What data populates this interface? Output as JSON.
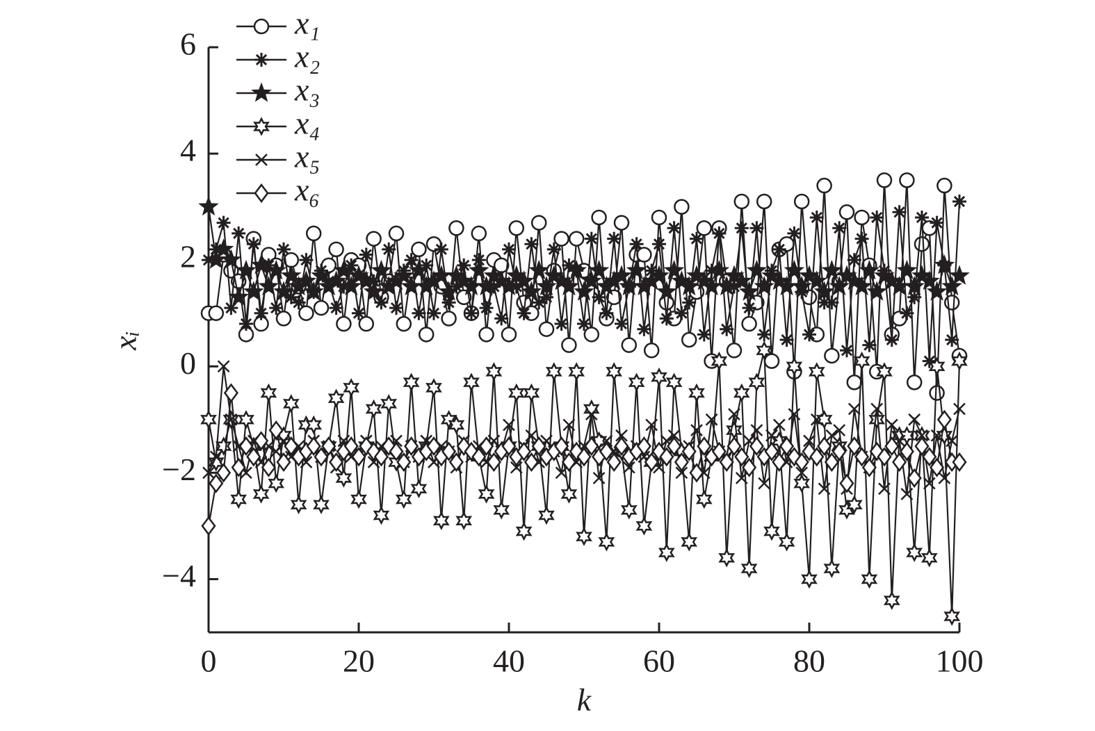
{
  "chart_data": {
    "type": "line",
    "xlabel": "k",
    "ylabel": "xᵢ",
    "xlim": [
      0,
      100
    ],
    "xticks": [
      0,
      20,
      40,
      60,
      80,
      100
    ],
    "ylim": [
      -5,
      6
    ],
    "yticks": [
      {
        "value": -4,
        "label": "−4"
      },
      {
        "value": -2,
        "label": "−2"
      },
      0,
      2,
      4,
      6
    ],
    "legend": "top-left",
    "x": [
      0,
      1,
      2,
      3,
      4,
      5,
      6,
      7,
      8,
      9,
      10,
      11,
      12,
      13,
      14,
      15,
      16,
      17,
      18,
      19,
      20,
      21,
      22,
      23,
      24,
      25,
      26,
      27,
      28,
      29,
      30,
      31,
      32,
      33,
      34,
      35,
      36,
      37,
      38,
      39,
      40,
      41,
      42,
      43,
      44,
      45,
      46,
      47,
      48,
      49,
      50,
      51,
      52,
      53,
      54,
      55,
      56,
      57,
      58,
      59,
      60,
      61,
      62,
      63,
      64,
      65,
      66,
      67,
      68,
      69,
      70,
      71,
      72,
      73,
      74,
      75,
      76,
      77,
      78,
      79,
      80,
      81,
      82,
      83,
      84,
      85,
      86,
      87,
      88,
      89,
      90,
      91,
      92,
      93,
      94,
      95,
      96,
      97,
      98,
      99,
      100
    ],
    "series": [
      {
        "name": "x₁",
        "color": "#231f20",
        "marker": "circle",
        "values": [
          1.0,
          1.0,
          2.1,
          1.8,
          1.6,
          0.6,
          2.4,
          0.8,
          2.1,
          1.9,
          0.9,
          2.0,
          1.5,
          1.0,
          2.5,
          1.1,
          1.9,
          2.2,
          0.8,
          2.0,
          1.9,
          0.8,
          2.4,
          1.3,
          1.6,
          2.5,
          0.8,
          1.8,
          2.2,
          0.6,
          2.3,
          1.5,
          0.9,
          2.6,
          1.3,
          1.0,
          2.5,
          0.6,
          2.0,
          1.9,
          0.6,
          2.6,
          1.2,
          1.0,
          2.7,
          0.7,
          1.8,
          2.4,
          0.4,
          2.4,
          1.8,
          0.6,
          2.8,
          0.9,
          1.3,
          2.7,
          0.4,
          2.1,
          2.1,
          0.3,
          2.8,
          1.2,
          0.9,
          3.0,
          0.5,
          1.4,
          2.6,
          0.1,
          2.6,
          1.6,
          0.3,
          3.1,
          0.8,
          1.2,
          3.1,
          0.1,
          2.2,
          2.3,
          -0.1,
          3.1,
          1.3,
          0.6,
          3.4,
          0.2,
          1.6,
          2.9,
          -0.3,
          2.8,
          1.9,
          -0.1,
          3.5,
          0.6,
          0.9,
          3.5,
          -0.3,
          2.3,
          2.6,
          -0.5,
          3.4,
          1.2,
          0.2
        ]
      },
      {
        "name": "x₂",
        "color": "#231f20",
        "marker": "asterisk",
        "values": [
          2.0,
          2.2,
          2.7,
          1.1,
          2.5,
          0.8,
          2.3,
          1.0,
          1.9,
          1.1,
          2.2,
          1.3,
          1.2,
          2.0,
          1.4,
          1.8,
          1.6,
          1.1,
          1.5,
          1.9,
          1.0,
          2.1,
          1.6,
          1.2,
          2.2,
          1.1,
          1.8,
          2.0,
          1.0,
          1.9,
          1.0,
          2.2,
          1.2,
          1.5,
          1.9,
          1.0,
          2.0,
          1.1,
          1.5,
          0.9,
          2.2,
          1.5,
          1.0,
          2.3,
          1.2,
          1.3,
          2.2,
          0.8,
          1.9,
          1.8,
          0.8,
          2.4,
          1.3,
          1.0,
          2.4,
          0.8,
          1.5,
          2.3,
          0.7,
          1.8,
          2.3,
          0.9,
          2.6,
          1.0,
          1.2,
          2.4,
          0.6,
          1.8,
          2.5,
          0.7,
          1.5,
          2.6,
          1.1,
          2.6,
          0.6,
          1.8,
          2.2,
          0.5,
          2.5,
          1.4,
          0.6,
          2.8,
          1.2,
          1.2,
          2.6,
          0.3,
          2.0,
          2.4,
          0.4,
          2.8,
          1.8,
          0.5,
          2.9,
          1.0,
          1.3,
          2.8,
          0.1,
          2.7,
          1.9,
          0.5,
          3.1
        ]
      },
      {
        "name": "x₃",
        "color": "#231f20",
        "marker": "star",
        "values": [
          3.0,
          2.0,
          2.2,
          2.0,
          1.3,
          1.8,
          1.4,
          1.9,
          1.5,
          1.8,
          1.4,
          1.7,
          1.5,
          1.6,
          1.4,
          1.7,
          1.5,
          1.6,
          1.8,
          1.5,
          1.7,
          1.6,
          1.4,
          1.8,
          1.5,
          1.6,
          1.7,
          1.5,
          1.8,
          1.5,
          1.6,
          1.7,
          1.4,
          1.7,
          1.6,
          1.5,
          1.8,
          1.5,
          1.7,
          1.6,
          1.5,
          1.7,
          1.6,
          1.4,
          1.8,
          1.5,
          1.7,
          1.6,
          1.5,
          1.8,
          1.4,
          1.6,
          1.8,
          1.5,
          1.6,
          1.7,
          1.5,
          1.8,
          1.5,
          1.6,
          1.7,
          1.4,
          1.8,
          1.6,
          1.5,
          1.7,
          1.6,
          1.5,
          1.8,
          1.5,
          1.7,
          1.6,
          1.4,
          1.8,
          1.5,
          1.7,
          1.6,
          1.5,
          1.8,
          1.5,
          1.7,
          1.6,
          1.4,
          1.8,
          1.5,
          1.7,
          1.6,
          1.5,
          1.8,
          1.4,
          1.7,
          1.6,
          1.5,
          1.8,
          1.5,
          1.7,
          1.6,
          1.4,
          1.9,
          1.5,
          1.7
        ]
      },
      {
        "name": "x₄",
        "color": "#231f20",
        "marker": "hexagram",
        "values": [
          -1.0,
          -1.8,
          -1.5,
          -1.0,
          -2.5,
          -1.0,
          -1.5,
          -2.4,
          -0.5,
          -2.2,
          -1.3,
          -0.7,
          -2.6,
          -1.1,
          -1.1,
          -2.6,
          -1.5,
          -0.6,
          -2.1,
          -0.4,
          -2.5,
          -1.5,
          -0.8,
          -2.8,
          -0.7,
          -1.8,
          -2.5,
          -0.3,
          -2.3,
          -1.5,
          -0.4,
          -2.9,
          -1.0,
          -1.1,
          -2.9,
          -0.3,
          -1.7,
          -2.4,
          -0.1,
          -2.7,
          -1.5,
          -0.5,
          -3.1,
          -0.5,
          -1.5,
          -2.8,
          -0.1,
          -1.5,
          -2.4,
          -0.1,
          -3.2,
          -0.8,
          -1.4,
          -3.3,
          -0.1,
          -1.6,
          -2.7,
          -0.3,
          -3.0,
          -1.8,
          -0.2,
          -3.5,
          -0.3,
          -1.6,
          -3.3,
          -0.5,
          -2.5,
          -1.7,
          0.1,
          -3.6,
          -1.2,
          -0.5,
          -3.8,
          -0.3,
          0.3,
          -3.1,
          -1.4,
          -3.3,
          0.0,
          -2.2,
          -4.0,
          -0.1,
          -1.0,
          -3.8,
          -1.5,
          -2.7,
          -2.6,
          0.1,
          -4.0,
          -1.0,
          -0.1,
          -4.4,
          -1.3,
          -1.3,
          -3.5,
          -1.3,
          -3.6,
          0.0,
          -1.3,
          -4.7,
          0.1
        ]
      },
      {
        "name": "x₅",
        "color": "#231f20",
        "marker": "cross",
        "values": [
          -2.0,
          -1.7,
          0.0,
          -1.0,
          -1.5,
          -2.0,
          -1.4,
          -1.8,
          -1.5,
          -1.6,
          -1.4,
          -1.7,
          -1.5,
          -1.8,
          -1.4,
          -1.7,
          -1.5,
          -1.9,
          -1.4,
          -1.7,
          -1.6,
          -1.4,
          -1.8,
          -1.5,
          -1.6,
          -1.4,
          -1.8,
          -1.5,
          -1.7,
          -1.4,
          -1.8,
          -1.5,
          -1.6,
          -1.9,
          -1.4,
          -1.7,
          -1.5,
          -1.8,
          -1.4,
          -1.6,
          -1.1,
          -1.9,
          -1.5,
          -1.3,
          -1.8,
          -1.4,
          -1.6,
          -2.0,
          -1.1,
          -1.8,
          -1.5,
          -0.9,
          -2.1,
          -1.4,
          -1.6,
          -1.3,
          -1.9,
          -1.5,
          -1.7,
          -1.1,
          -1.9,
          -1.4,
          -1.3,
          -2.0,
          -1.5,
          -1.2,
          -2.0,
          -1.0,
          -1.6,
          -1.7,
          -0.9,
          -2.1,
          -1.4,
          -1.2,
          -2.2,
          -1.3,
          -1.1,
          -1.8,
          -0.9,
          -2.0,
          -1.4,
          -1.0,
          -2.3,
          -1.3,
          -1.2,
          -2.3,
          -0.8,
          -1.7,
          -1.9,
          -0.8,
          -2.3,
          -1.1,
          -1.4,
          -2.4,
          -1.0,
          -1.3,
          -2.2,
          -1.3,
          -2.1,
          -1.4,
          -0.8
        ]
      },
      {
        "name": "x₆",
        "color": "#231f20",
        "marker": "diamond",
        "values": [
          -3.0,
          -2.2,
          -2.0,
          -0.5,
          -1.9,
          -1.5,
          -1.7,
          -1.4,
          -1.9,
          -1.2,
          -1.8,
          -1.5,
          -1.7,
          -1.6,
          -1.5,
          -1.7,
          -1.5,
          -1.8,
          -1.6,
          -1.5,
          -1.7,
          -1.5,
          -1.6,
          -1.7,
          -1.5,
          -1.6,
          -1.8,
          -1.5,
          -1.7,
          -1.6,
          -1.5,
          -1.7,
          -1.6,
          -1.8,
          -1.5,
          -1.6,
          -1.7,
          -1.5,
          -1.8,
          -1.6,
          -1.5,
          -1.7,
          -1.6,
          -1.8,
          -1.5,
          -1.7,
          -1.6,
          -1.5,
          -1.8,
          -1.6,
          -1.7,
          -1.5,
          -1.7,
          -1.6,
          -1.8,
          -1.5,
          -1.7,
          -1.6,
          -1.5,
          -1.8,
          -1.6,
          -1.7,
          -1.5,
          -1.8,
          -1.6,
          -2.0,
          -1.5,
          -1.7,
          -1.6,
          -1.8,
          -1.5,
          -1.7,
          -1.9,
          -1.5,
          -1.7,
          -1.6,
          -1.8,
          -1.5,
          -1.7,
          -1.8,
          -1.6,
          -1.7,
          -1.5,
          -1.8,
          -1.6,
          -2.2,
          -1.5,
          -1.7,
          -1.9,
          -1.6,
          -1.7,
          -1.5,
          -1.8,
          -1.6,
          -2.1,
          -1.5,
          -1.7,
          -1.9,
          -1.0,
          -1.8,
          -1.8
        ]
      }
    ]
  }
}
